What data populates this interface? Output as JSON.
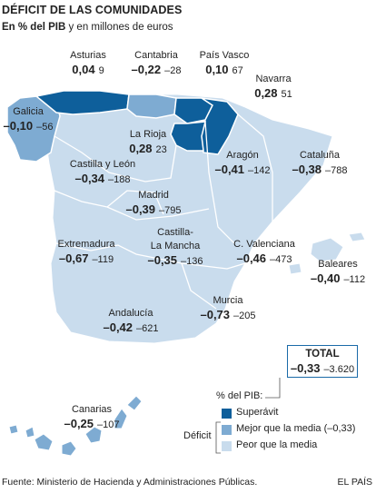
{
  "title": "DÉFICIT DE LAS COMUNIDADES",
  "subtitle_bold": "En % del PIB",
  "subtitle_rest": " y en millones de euros",
  "colors": {
    "superavit": "#0e5f9b",
    "better": "#7eabd2",
    "worse": "#c9dced",
    "border": "#ffffff",
    "total_border": "#1a6aa8"
  },
  "regions": [
    {
      "name": "Asturias",
      "pct": "0,04",
      "eur": "9",
      "category": "superavit"
    },
    {
      "name": "Cantabria",
      "pct": "–0,22",
      "eur": "–28",
      "category": "better"
    },
    {
      "name": "País Vasco",
      "pct": "0,10",
      "eur": "67",
      "category": "superavit"
    },
    {
      "name": "Navarra",
      "pct": "0,28",
      "eur": "51",
      "category": "superavit"
    },
    {
      "name": "Galicia",
      "pct": "–0,10",
      "eur": "–56",
      "category": "better"
    },
    {
      "name": "La Rioja",
      "pct": "0,28",
      "eur": "23",
      "category": "superavit"
    },
    {
      "name": "Aragón",
      "pct": "–0,41",
      "eur": "–142",
      "category": "worse"
    },
    {
      "name": "Cataluña",
      "pct": "–0,38",
      "eur": "–788",
      "category": "worse"
    },
    {
      "name": "Castilla y León",
      "pct": "–0,34",
      "eur": "–188",
      "category": "worse"
    },
    {
      "name": "Madrid",
      "pct": "–0,39",
      "eur": "–795",
      "category": "worse"
    },
    {
      "name": "Extremadura",
      "pct": "–0,67",
      "eur": "–119",
      "category": "worse"
    },
    {
      "name": "Castilla-La Mancha",
      "name_line1": "Castilla-",
      "name_line2": "La Mancha",
      "pct": "–0,35",
      "eur": "–136",
      "category": "worse"
    },
    {
      "name": "C. Valenciana",
      "pct": "–0,46",
      "eur": "–473",
      "category": "worse"
    },
    {
      "name": "Baleares",
      "pct": "–0,40",
      "eur": "–112",
      "category": "worse"
    },
    {
      "name": "Andalucía",
      "pct": "–0,42",
      "eur": "–621",
      "category": "worse"
    },
    {
      "name": "Murcia",
      "pct": "–0,73",
      "eur": "–205",
      "category": "worse"
    },
    {
      "name": "Canarias",
      "pct": "–0,25",
      "eur": "–107",
      "category": "better"
    }
  ],
  "total": {
    "label": "TOTAL",
    "pct": "–0,33",
    "eur": "–3.620"
  },
  "legend": {
    "pib_label": "% del PIB:",
    "deficit_label": "Déficit",
    "items": [
      {
        "label": "Superávit",
        "category": "superavit"
      },
      {
        "label": "Mejor que la media (–0,33)",
        "category": "better"
      },
      {
        "label": "Peor que la media",
        "category": "worse"
      }
    ]
  },
  "source": "Fuente: Ministerio de Hacienda y Administraciones Públicas.",
  "credit": "EL PAÍS"
}
